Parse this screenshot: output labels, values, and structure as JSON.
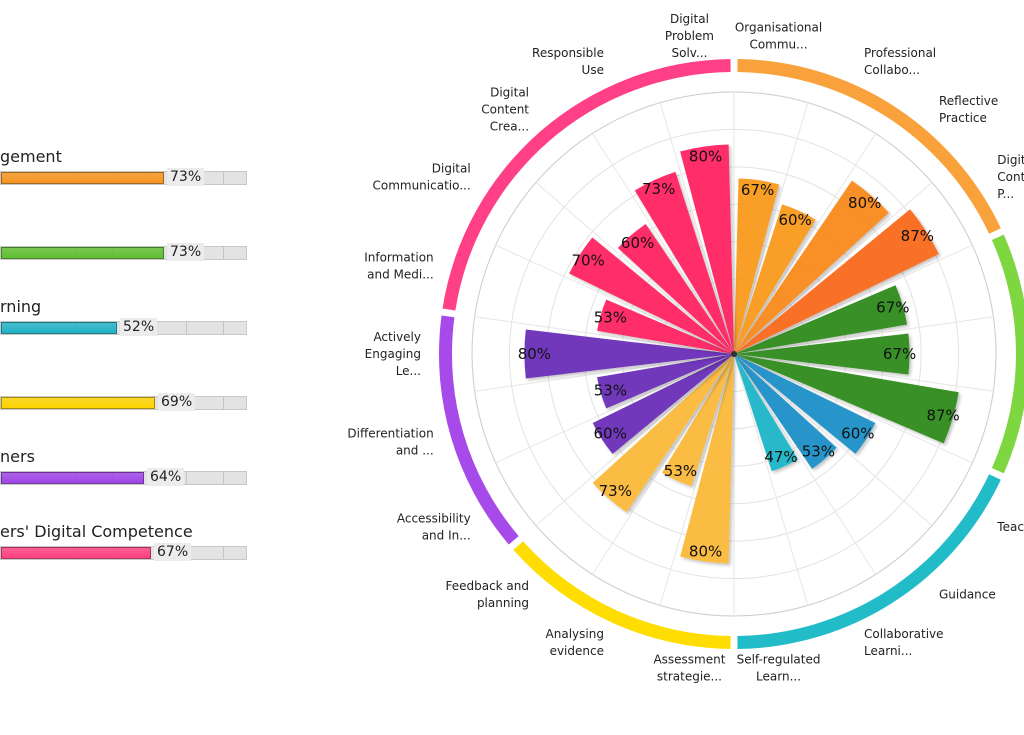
{
  "bar_panel": {
    "items": [
      {
        "title": "gement",
        "value": 73,
        "label": "73%",
        "color": "#f7941d"
      },
      {
        "title": "",
        "value": 73,
        "label": "73%",
        "color": "#5fbf2f"
      },
      {
        "title": "rning",
        "value": 52,
        "label": "52%",
        "color": "#1fb3c6"
      },
      {
        "title": "",
        "value": 69,
        "label": "69%",
        "color": "#ffd400"
      },
      {
        "title": "ners",
        "value": 64,
        "label": "64%",
        "color": "#a044e8"
      },
      {
        "title": "ers' Digital Competence",
        "value": 67,
        "label": "67%",
        "color": "#ff3f7f"
      }
    ]
  },
  "chart_data": {
    "type": "radial-bar",
    "rmax": 100,
    "grid": true,
    "categories": [
      {
        "label": "Organisational Commu...",
        "value": 67,
        "color": "#f99a1c"
      },
      {
        "label": "Professional Collabo...",
        "value": 60,
        "color": "#f99a1c"
      },
      {
        "label": "Reflective Practice",
        "value": 80,
        "color": "#f98a1c"
      },
      {
        "label": "Digital Continuous P...",
        "value": 87,
        "color": "#f96a1c"
      },
      {
        "label": "",
        "value": 67,
        "color": "#2e8b1c"
      },
      {
        "label": "",
        "value": 67,
        "color": "#2e8b1c"
      },
      {
        "label": "",
        "value": 87,
        "color": "#2e8b1c"
      },
      {
        "label": "Teaching",
        "value": 60,
        "color": "#1e90c8"
      },
      {
        "label": "Guidance",
        "value": 53,
        "color": "#1e90c8"
      },
      {
        "label": "Collaborative Learni...",
        "value": 47,
        "color": "#1ab6c8"
      },
      {
        "label": "Self-regulated Learn...",
        "value": 0,
        "color": "#1ab6c8"
      },
      {
        "label": "Assessment strategie...",
        "value": 80,
        "color": "#fbb93a"
      },
      {
        "label": "Analysing evidence",
        "value": 53,
        "color": "#fbb93a"
      },
      {
        "label": "Feedback and planning",
        "value": 73,
        "color": "#fbb93a"
      },
      {
        "label": "Accessibility and In...",
        "value": 60,
        "color": "#6a2fb8"
      },
      {
        "label": "Differentiation and ...",
        "value": 53,
        "color": "#6a2fb8"
      },
      {
        "label": "Actively Engaging Le...",
        "value": 80,
        "color": "#6a2fb8"
      },
      {
        "label": "Information and Medi...",
        "value": 53,
        "color": "#ff2060"
      },
      {
        "label": "Digital Communicatio...",
        "value": 70,
        "color": "#ff2060"
      },
      {
        "label": "Digital Content Crea...",
        "value": 60,
        "color": "#ff2060"
      },
      {
        "label": "Responsible Use",
        "value": 73,
        "color": "#ff2060"
      },
      {
        "label": "Digital Problem Solv...",
        "value": 80,
        "color": "#ff2060"
      }
    ],
    "groups": [
      {
        "color": "#f9a23c",
        "from": 0,
        "to": 4
      },
      {
        "color": "#7ed640",
        "from": 4,
        "to": 7
      },
      {
        "color": "#22bcc8",
        "from": 7,
        "to": 11
      },
      {
        "color": "#ffdd00",
        "from": 11,
        "to": 14
      },
      {
        "color": "#a64be9",
        "from": 14,
        "to": 17
      },
      {
        "color": "#ff4086",
        "from": 17,
        "to": 22
      }
    ]
  }
}
